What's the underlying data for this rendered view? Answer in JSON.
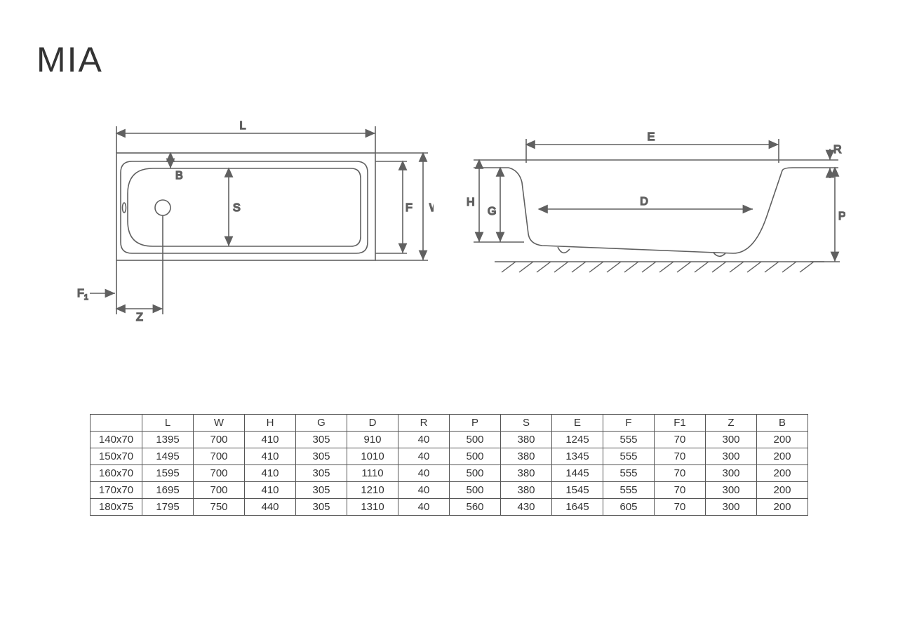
{
  "title": "MIA",
  "colors": {
    "stroke": "#606060",
    "bg": "#ffffff",
    "text": "#333333",
    "hatch": "#606060"
  },
  "stroke_width": 1.6,
  "diagram_top": {
    "labels": {
      "L": "L",
      "B": "B",
      "S": "S",
      "F": "F",
      "W": "W",
      "F1": "F",
      "F1sub": "1",
      "Z": "Z"
    }
  },
  "diagram_side": {
    "labels": {
      "E": "E",
      "R": "R",
      "H": "H",
      "G": "G",
      "D": "D",
      "P": "P"
    }
  },
  "table": {
    "columns": [
      "",
      "L",
      "W",
      "H",
      "G",
      "D",
      "R",
      "P",
      "S",
      "E",
      "F",
      "F1",
      "Z",
      "B"
    ],
    "rows": [
      [
        "140x70",
        "1395",
        "700",
        "410",
        "305",
        "910",
        "40",
        "500",
        "380",
        "1245",
        "555",
        "70",
        "300",
        "200"
      ],
      [
        "150x70",
        "1495",
        "700",
        "410",
        "305",
        "1010",
        "40",
        "500",
        "380",
        "1345",
        "555",
        "70",
        "300",
        "200"
      ],
      [
        "160x70",
        "1595",
        "700",
        "410",
        "305",
        "1110",
        "40",
        "500",
        "380",
        "1445",
        "555",
        "70",
        "300",
        "200"
      ],
      [
        "170x70",
        "1695",
        "700",
        "410",
        "305",
        "1210",
        "40",
        "500",
        "380",
        "1545",
        "555",
        "70",
        "300",
        "200"
      ],
      [
        "180x75",
        "1795",
        "750",
        "440",
        "305",
        "1310",
        "40",
        "560",
        "430",
        "1645",
        "605",
        "70",
        "300",
        "200"
      ]
    ]
  }
}
